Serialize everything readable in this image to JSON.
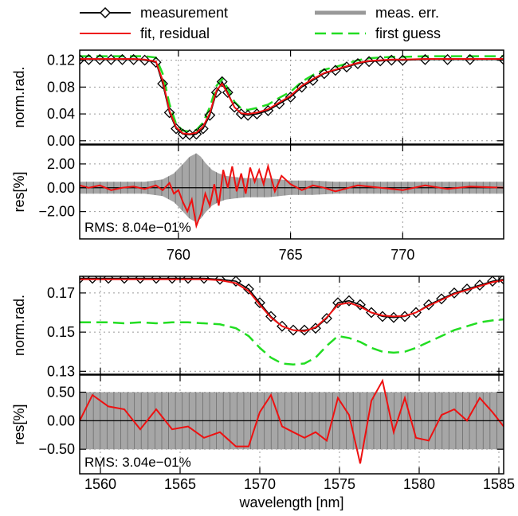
{
  "legend": [
    {
      "label": "measurement",
      "color": "#000000",
      "style": "line-diamond"
    },
    {
      "label": "meas. err.",
      "color": "#999999",
      "style": "thick-line"
    },
    {
      "label": "fit, residual",
      "color": "#ee1111",
      "style": "line"
    },
    {
      "label": "first guess",
      "color": "#22dd22",
      "style": "dashed"
    }
  ],
  "xlabel": "wavelength [nm]",
  "chart_data": [
    {
      "type": "line",
      "panel": "upper spectral window",
      "xlim": [
        755.6,
        774.5
      ],
      "xticks": [
        760,
        765,
        770
      ],
      "xticklabels": [
        "760",
        "765",
        "770"
      ],
      "radiance": {
        "ylabel": "norm.rad.",
        "ylim": [
          -0.005,
          0.135
        ],
        "yticks": [
          0.0,
          0.04,
          0.08,
          0.12
        ],
        "yticklabels": [
          "0.00",
          "0.04",
          "0.08",
          "0.12"
        ],
        "x": [
          755.6,
          756.0,
          756.5,
          757.0,
          757.5,
          758.0,
          758.5,
          759.0,
          759.3,
          759.6,
          759.9,
          760.2,
          760.5,
          760.8,
          761.1,
          761.4,
          761.7,
          761.95,
          762.2,
          762.5,
          762.8,
          763.1,
          763.5,
          764.0,
          764.5,
          765.0,
          765.5,
          766.0,
          766.5,
          767.0,
          767.5,
          768.0,
          768.5,
          769.0,
          769.5,
          770.0,
          771.0,
          772.0,
          773.0,
          774.5
        ],
        "series": [
          {
            "name": "measurement",
            "color": "#000000",
            "values": [
              0.121,
              0.121,
              0.121,
              0.121,
              0.121,
              0.121,
              0.12,
              0.117,
              0.085,
              0.042,
              0.018,
              0.01,
              0.009,
              0.01,
              0.018,
              0.038,
              0.072,
              0.088,
              0.072,
              0.05,
              0.04,
              0.038,
              0.04,
              0.045,
              0.055,
              0.065,
              0.08,
              0.09,
              0.1,
              0.105,
              0.11,
              0.115,
              0.118,
              0.119,
              0.12,
              0.12,
              0.121,
              0.121,
              0.121,
              0.121
            ]
          },
          {
            "name": "fit, residual",
            "color": "#ee1111",
            "values": [
              0.122,
              0.122,
              0.122,
              0.122,
              0.122,
              0.122,
              0.121,
              0.118,
              0.09,
              0.045,
              0.02,
              0.011,
              0.01,
              0.012,
              0.021,
              0.041,
              0.075,
              0.085,
              0.07,
              0.05,
              0.041,
              0.04,
              0.042,
              0.047,
              0.057,
              0.067,
              0.082,
              0.092,
              0.101,
              0.106,
              0.111,
              0.116,
              0.119,
              0.12,
              0.121,
              0.121,
              0.122,
              0.122,
              0.122,
              0.122
            ]
          },
          {
            "name": "first guess",
            "color": "#22dd22",
            "values": [
              0.126,
              0.126,
              0.126,
              0.126,
              0.126,
              0.126,
              0.126,
              0.124,
              0.1,
              0.055,
              0.025,
              0.015,
              0.014,
              0.016,
              0.027,
              0.05,
              0.082,
              0.092,
              0.078,
              0.058,
              0.048,
              0.046,
              0.049,
              0.054,
              0.064,
              0.073,
              0.088,
              0.098,
              0.106,
              0.11,
              0.115,
              0.12,
              0.123,
              0.124,
              0.125,
              0.125,
              0.126,
              0.126,
              0.126,
              0.126
            ]
          }
        ]
      },
      "residual": {
        "ylabel": "res[%]",
        "ylim": [
          -4.3,
          3.6
        ],
        "yticks": [
          -2.0,
          0.0,
          2.0
        ],
        "yticklabels": [
          "−2.00",
          "0.00",
          "2.00"
        ],
        "rms_label": "RMS: 8.04e−01%",
        "x": [
          755.6,
          756.0,
          756.5,
          757.0,
          757.5,
          758.0,
          758.5,
          759.0,
          759.3,
          759.6,
          759.8,
          760.0,
          760.2,
          760.4,
          760.6,
          760.8,
          761.0,
          761.2,
          761.4,
          761.6,
          761.8,
          762.0,
          762.2,
          762.4,
          762.6,
          762.8,
          763.0,
          763.2,
          763.4,
          763.6,
          763.8,
          764.0,
          764.3,
          764.6,
          765.0,
          765.5,
          766.0,
          766.5,
          767.0,
          768.0,
          769.0,
          770.0,
          771.0,
          772.0,
          773.0,
          774.5
        ],
        "values": [
          0.2,
          0.0,
          0.2,
          -0.2,
          0.0,
          0.1,
          -0.1,
          0.2,
          -0.2,
          0.4,
          -0.5,
          -0.2,
          -1.2,
          -2.0,
          -1.0,
          -3.2,
          -2.2,
          -0.5,
          -1.5,
          0.3,
          -1.5,
          1.5,
          0.0,
          1.8,
          -0.3,
          1.2,
          -0.5,
          1.7,
          0.5,
          1.5,
          0.3,
          1.8,
          -0.3,
          1.0,
          0.3,
          -0.2,
          0.2,
          0.0,
          -0.3,
          0.2,
          0.0,
          -0.2,
          0.2,
          -0.1,
          0.1,
          0.0
        ],
        "error_x": [
          755.6,
          757.0,
          758.5,
          759.3,
          759.8,
          760.2,
          760.5,
          760.8,
          761.0,
          761.2,
          761.5,
          761.8,
          762.1,
          762.5,
          763.0,
          763.5,
          764.0,
          764.5,
          765.0,
          766.0,
          767.0,
          768.0,
          770.0,
          772.0,
          774.5
        ],
        "error_band": [
          0.5,
          0.5,
          0.5,
          0.7,
          1.2,
          2.0,
          2.6,
          2.9,
          2.6,
          2.1,
          1.5,
          1.2,
          1.0,
          0.9,
          0.8,
          0.8,
          0.8,
          0.7,
          0.6,
          0.6,
          0.5,
          0.5,
          0.5,
          0.5,
          0.5
        ]
      }
    },
    {
      "type": "line",
      "panel": "lower spectral window",
      "xlim": [
        1558.7,
        1585.3
      ],
      "xticks": [
        1560,
        1565,
        1570,
        1575,
        1580,
        1585
      ],
      "xticklabels": [
        "1560",
        "1565",
        "1570",
        "1575",
        "1580",
        "1585"
      ],
      "radiance": {
        "ylabel": "norm.rad.",
        "ylim": [
          0.1285,
          0.1785
        ],
        "yticks": [
          0.13,
          0.15,
          0.17
        ],
        "yticklabels": [
          "0.13",
          "0.15",
          "0.17"
        ],
        "x": [
          1558.7,
          1559.5,
          1560.5,
          1561.5,
          1562.5,
          1563.5,
          1564.5,
          1565.5,
          1566.5,
          1567.5,
          1568.5,
          1569.3,
          1570.0,
          1570.7,
          1571.4,
          1572.1,
          1572.8,
          1573.5,
          1574.2,
          1574.9,
          1575.6,
          1576.3,
          1577.0,
          1577.7,
          1578.4,
          1579.1,
          1579.8,
          1580.6,
          1581.4,
          1582.2,
          1583.0,
          1583.8,
          1584.6,
          1585.3
        ],
        "series": [
          {
            "name": "measurement",
            "color": "#000000",
            "values": [
              0.1775,
              0.1775,
              0.1775,
              0.1775,
              0.1775,
              0.1775,
              0.1775,
              0.1775,
              0.1775,
              0.177,
              0.176,
              0.172,
              0.165,
              0.158,
              0.153,
              0.151,
              0.151,
              0.152,
              0.157,
              0.165,
              0.166,
              0.164,
              0.16,
              0.158,
              0.1575,
              0.158,
              0.16,
              0.164,
              0.167,
              0.17,
              0.172,
              0.174,
              0.176,
              0.177
            ]
          },
          {
            "name": "fit, residual",
            "color": "#ee1111",
            "values": [
              0.177,
              0.177,
              0.177,
              0.177,
              0.177,
              0.177,
              0.177,
              0.177,
              0.177,
              0.1765,
              0.175,
              0.171,
              0.164,
              0.1575,
              0.153,
              0.151,
              0.1505,
              0.1525,
              0.1575,
              0.164,
              0.165,
              0.163,
              0.16,
              0.1585,
              0.158,
              0.1583,
              0.16,
              0.1635,
              0.1665,
              0.1695,
              0.1715,
              0.1735,
              0.1755,
              0.1765
            ]
          },
          {
            "name": "first guess",
            "color": "#22dd22",
            "values": [
              0.155,
              0.155,
              0.155,
              0.1545,
              0.155,
              0.1545,
              0.155,
              0.155,
              0.1545,
              0.154,
              0.152,
              0.148,
              0.142,
              0.137,
              0.134,
              0.1335,
              0.134,
              0.137,
              0.143,
              0.148,
              0.147,
              0.145,
              0.142,
              0.14,
              0.1395,
              0.14,
              0.142,
              0.145,
              0.148,
              0.151,
              0.153,
              0.155,
              0.156,
              0.1565
            ]
          }
        ]
      },
      "residual": {
        "ylabel": "res[%]",
        "ylim": [
          -0.93,
          0.8
        ],
        "yticks": [
          -0.5,
          0.0,
          0.5
        ],
        "yticklabels": [
          "−0.50",
          "0.00",
          "0.50"
        ],
        "rms_label": "RMS: 3.04e−01%",
        "x": [
          1558.7,
          1559.5,
          1560.5,
          1561.5,
          1562.5,
          1563.5,
          1564.5,
          1565.5,
          1566.5,
          1567.5,
          1568.5,
          1569.3,
          1570.0,
          1570.7,
          1571.4,
          1572.1,
          1572.8,
          1573.5,
          1574.2,
          1574.9,
          1575.6,
          1576.3,
          1577.0,
          1577.7,
          1578.4,
          1579.1,
          1579.8,
          1580.6,
          1581.4,
          1582.2,
          1583.0,
          1583.8,
          1584.6,
          1585.3
        ],
        "values": [
          0.0,
          0.45,
          0.25,
          0.2,
          -0.15,
          0.2,
          -0.15,
          -0.1,
          -0.3,
          -0.2,
          -0.45,
          -0.45,
          0.15,
          0.45,
          -0.1,
          -0.2,
          -0.3,
          -0.2,
          -0.35,
          0.4,
          0.1,
          -0.75,
          0.35,
          0.7,
          -0.2,
          0.4,
          -0.3,
          -0.35,
          0.1,
          0.2,
          0.0,
          0.4,
          0.15,
          -0.1
        ],
        "error_x": [
          1558.7,
          1585.3
        ],
        "error_band": [
          0.5,
          0.5
        ]
      }
    }
  ]
}
